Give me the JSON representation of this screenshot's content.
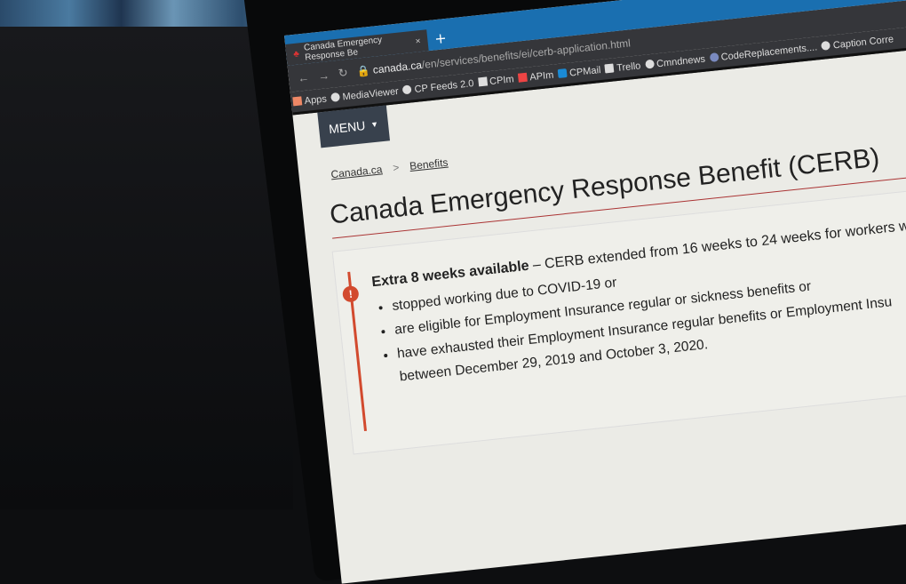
{
  "browser": {
    "tab_title": "Canada Emergency Response Be",
    "url_host": "canada.ca",
    "url_path": "/en/services/benefits/ei/cerb-application.html",
    "bookmarks": [
      "Apps",
      "MediaViewer",
      "CP Feeds 2.0",
      "CPIm",
      "APIm",
      "CPMail",
      "Trello",
      "Cmndnews",
      "CodeReplacements....",
      "Caption Corre"
    ]
  },
  "page": {
    "menu_label": "MENU",
    "breadcrumb": [
      "Canada.ca",
      "Benefits"
    ],
    "title": "Canada Emergency Response Benefit (CERB)",
    "alert": {
      "heading": "Extra 8 weeks available",
      "text": " – CERB extended from 16 weeks to 24 weeks for workers who",
      "items": [
        "stopped working due to COVID-19 or",
        "are eligible for Employment Insurance regular or sickness benefits or",
        "have exhausted their Employment Insurance regular benefits or Employment Insu"
      ],
      "continuation": "between December 29, 2019 and October 3, 2020."
    }
  },
  "colors": {
    "alert_accent": "#d24a2e",
    "menu_bg": "#38414d",
    "tab_blue": "#1a6fb0"
  }
}
